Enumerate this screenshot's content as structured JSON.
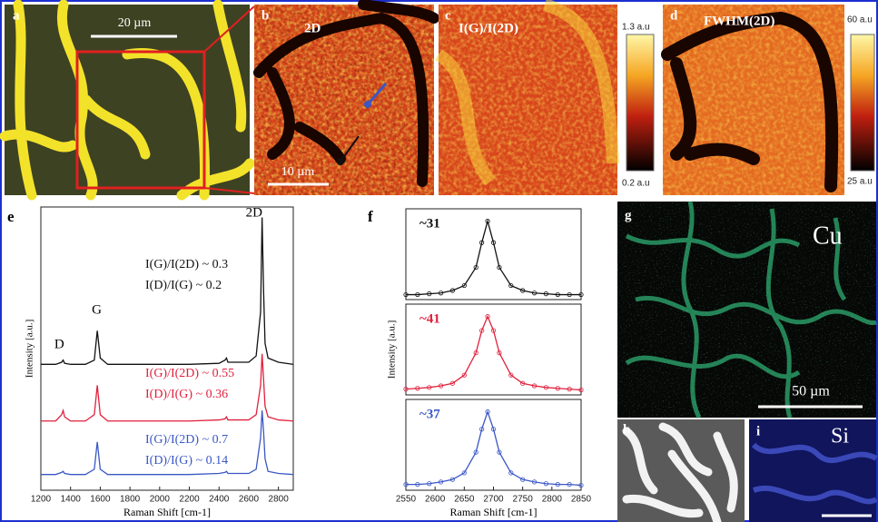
{
  "panels": {
    "a": {
      "label": "a",
      "scale_bar": "20 µm"
    },
    "b": {
      "label": "b",
      "title": "2D",
      "scale_bar": "10 µm"
    },
    "c": {
      "label": "c",
      "title": "I(G)/I(2D)",
      "colorbar_top": "1.3 a.u",
      "colorbar_bottom": "0.2 a.u"
    },
    "d": {
      "label": "d",
      "title": "FWHM(2D)",
      "colorbar_top": "60 a.u",
      "colorbar_bottom": "25 a.u"
    },
    "g": {
      "label": "g",
      "title": "Cu",
      "scale_bar": "50 µm"
    },
    "h": {
      "label": "h"
    },
    "i": {
      "label": "i",
      "title": "Si"
    }
  },
  "chart_data": [
    {
      "type": "line",
      "panel_label": "e",
      "xlabel": "Raman Shift [cm-1]",
      "ylabel": "Intensity [a.u.]",
      "x": [
        1200,
        1300,
        1340,
        1350,
        1360,
        1400,
        1500,
        1560,
        1580,
        1600,
        1650,
        1800,
        2000,
        2200,
        2400,
        2440,
        2450,
        2460,
        2600,
        2650,
        2680,
        2690,
        2700,
        2710,
        2730,
        2800,
        2900
      ],
      "xlim": [
        1200,
        2900
      ],
      "xticks": [
        1200,
        1400,
        1600,
        1800,
        2000,
        2200,
        2400,
        2600,
        2800
      ],
      "ylim": [
        0,
        13.5
      ],
      "annotations": [
        "2D",
        "G",
        "D"
      ],
      "series": [
        {
          "name": "I(G)/I(2D) ~ 0.3",
          "name2": "I(D)/I(G) ~ 0.2",
          "color": "#111111",
          "values": [
            6.0,
            6.0,
            6.1,
            6.2,
            6.05,
            6.0,
            6.0,
            6.2,
            7.6,
            6.3,
            6.0,
            6.0,
            6.0,
            6.0,
            6.05,
            6.2,
            6.3,
            6.1,
            6.1,
            6.4,
            8.5,
            13.0,
            9.5,
            7.0,
            6.3,
            6.1,
            6.0
          ]
        },
        {
          "name": "I(G)/I(2D) ~ 0.55",
          "name2": "I(D)/I(G) ~ 0.36",
          "color": "#e0203c",
          "values": [
            3.3,
            3.3,
            3.6,
            3.8,
            3.5,
            3.3,
            3.3,
            3.6,
            5.0,
            3.6,
            3.3,
            3.3,
            3.3,
            3.3,
            3.35,
            3.4,
            3.5,
            3.35,
            3.35,
            3.6,
            5.0,
            6.5,
            5.3,
            4.0,
            3.5,
            3.35,
            3.3
          ]
        },
        {
          "name": "I(G)/I(2D) ~ 0.7",
          "name2": "I(D)/I(G) ~ 0.14",
          "color": "#3a57c4",
          "values": [
            0.75,
            0.75,
            0.85,
            0.9,
            0.8,
            0.75,
            0.75,
            1.0,
            2.3,
            1.0,
            0.75,
            0.75,
            0.75,
            0.75,
            0.8,
            0.85,
            0.9,
            0.8,
            0.8,
            1.0,
            2.5,
            3.8,
            2.8,
            1.5,
            0.9,
            0.8,
            0.75
          ]
        }
      ]
    },
    {
      "type": "line",
      "panel_label": "f",
      "xlabel": "Raman Shift [cm-1]",
      "ylabel": "Intensity [a.u.]",
      "x": [
        2550,
        2570,
        2590,
        2610,
        2630,
        2650,
        2670,
        2680,
        2690,
        2700,
        2710,
        2730,
        2750,
        2770,
        2790,
        2810,
        2830,
        2850
      ],
      "xlim": [
        2550,
        2850
      ],
      "xticks": [
        2550,
        2600,
        2650,
        2700,
        2750,
        2800,
        2850
      ],
      "ylim": [
        0,
        1.1
      ],
      "series": [
        {
          "name": "~31",
          "color": "#111111",
          "values": [
            0.06,
            0.06,
            0.07,
            0.08,
            0.11,
            0.17,
            0.39,
            0.69,
            0.95,
            0.69,
            0.39,
            0.17,
            0.11,
            0.08,
            0.07,
            0.06,
            0.06,
            0.06
          ]
        },
        {
          "name": "~41",
          "color": "#e0203c",
          "values": [
            0.07,
            0.08,
            0.09,
            0.11,
            0.14,
            0.24,
            0.51,
            0.78,
            0.95,
            0.78,
            0.51,
            0.24,
            0.14,
            0.11,
            0.09,
            0.08,
            0.07,
            0.06
          ]
        },
        {
          "name": "~37",
          "color": "#3a57c4",
          "values": [
            0.07,
            0.07,
            0.08,
            0.1,
            0.13,
            0.21,
            0.46,
            0.74,
            0.95,
            0.74,
            0.46,
            0.21,
            0.13,
            0.1,
            0.08,
            0.07,
            0.07,
            0.06
          ]
        }
      ]
    }
  ]
}
